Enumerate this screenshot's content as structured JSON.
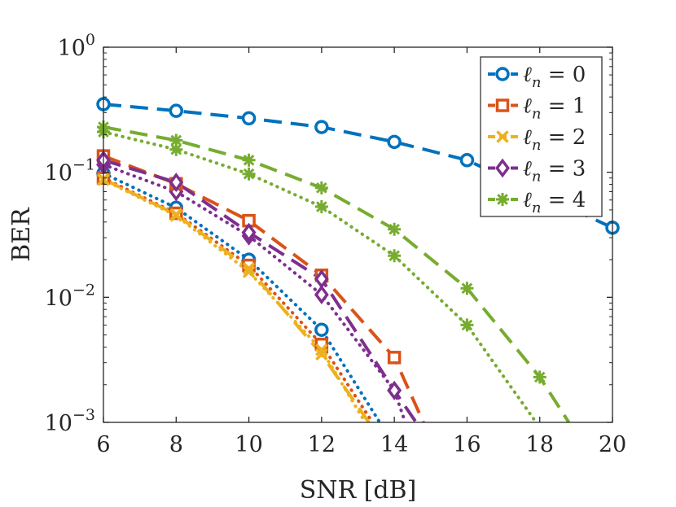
{
  "chart_data": {
    "type": "line",
    "title": "",
    "xlabel": "SNR [dB]",
    "ylabel": "BER",
    "xlim": [
      6,
      20
    ],
    "ylim": [
      0.001,
      1
    ],
    "yscale": "log",
    "x_ticks": [
      "6",
      "8",
      "10",
      "12",
      "14",
      "16",
      "18",
      "20"
    ],
    "y_ticks": [
      {
        "value": 1,
        "base": "10",
        "exp": "0"
      },
      {
        "value": 0.1,
        "base": "10",
        "exp": "−1"
      },
      {
        "value": 0.01,
        "base": "10",
        "exp": "−2"
      },
      {
        "value": 0.001,
        "base": "10",
        "exp": "−3"
      }
    ],
    "legend_position": "top-right",
    "series": [
      {
        "name": "ℓn = 0",
        "legend_sub": "n",
        "legend_val": "0",
        "color": "#0072BD",
        "marker": "circle",
        "style": "dashed",
        "x": [
          6,
          8,
          10,
          12,
          14,
          16,
          20
        ],
        "values": [
          0.35,
          0.31,
          0.27,
          0.23,
          0.175,
          0.125,
          0.036
        ]
      },
      {
        "name": "ℓn = 1",
        "legend_sub": "n",
        "legend_val": "1",
        "color": "#D95319",
        "marker": "square",
        "style": "dashed",
        "x": [
          6,
          8,
          10,
          12,
          14,
          14.8
        ],
        "values": [
          0.135,
          0.081,
          0.041,
          0.015,
          0.0033,
          0.001
        ]
      },
      {
        "name": "ℓn = 2",
        "legend_sub": "n",
        "legend_val": "2",
        "color": "#EDB120",
        "marker": "x",
        "style": "dashed",
        "x": [
          6,
          8,
          10,
          12,
          13.3
        ],
        "values": [
          0.088,
          0.046,
          0.017,
          0.0035,
          0.001
        ]
      },
      {
        "name": "ℓn = 3",
        "legend_sub": "n",
        "legend_val": "3",
        "color": "#7E2F8E",
        "marker": "diamond",
        "style": "dashed",
        "x": [
          6,
          8,
          10,
          12,
          14,
          14.6
        ],
        "values": [
          0.125,
          0.083,
          0.033,
          0.014,
          0.0018,
          0.001
        ]
      },
      {
        "name": "ℓn = 4",
        "legend_sub": "n",
        "legend_val": "4",
        "color": "#77AC30",
        "marker": "asterisk",
        "style": "dashed",
        "x": [
          6,
          8,
          10,
          12,
          14,
          16,
          18,
          18.8
        ],
        "values": [
          0.23,
          0.18,
          0.125,
          0.075,
          0.035,
          0.0118,
          0.0023,
          0.001
        ]
      }
    ],
    "dotted_series": [
      {
        "name": "ℓn = 0 (dotted)",
        "color": "#0072BD",
        "marker": "circle",
        "x": [
          6,
          8,
          10,
          12,
          13.6
        ],
        "values": [
          0.098,
          0.052,
          0.02,
          0.0055,
          0.001
        ]
      },
      {
        "name": "ℓn = 1 (dotted)",
        "color": "#D95319",
        "marker": "square",
        "x": [
          6,
          8,
          10,
          12,
          13.4
        ],
        "values": [
          0.09,
          0.047,
          0.018,
          0.0042,
          0.001
        ]
      },
      {
        "name": "ℓn = 2 (dotted)",
        "color": "#EDB120",
        "marker": "x",
        "x": [
          6,
          8,
          10,
          12,
          13.2
        ],
        "values": [
          0.087,
          0.045,
          0.016,
          0.0038,
          0.001
        ]
      },
      {
        "name": "ℓn = 3 (dotted)",
        "color": "#7E2F8E",
        "marker": "diamond",
        "x": [
          6,
          8,
          10,
          12,
          14,
          14.3
        ],
        "values": [
          0.115,
          0.07,
          0.031,
          0.0105,
          0.0018,
          0.001
        ]
      },
      {
        "name": "ℓn = 4 (dotted)",
        "color": "#77AC30",
        "marker": "asterisk",
        "x": [
          6,
          8,
          10,
          12,
          14,
          16,
          17.9
        ],
        "values": [
          0.21,
          0.152,
          0.097,
          0.053,
          0.0215,
          0.006,
          0.001
        ]
      }
    ]
  }
}
